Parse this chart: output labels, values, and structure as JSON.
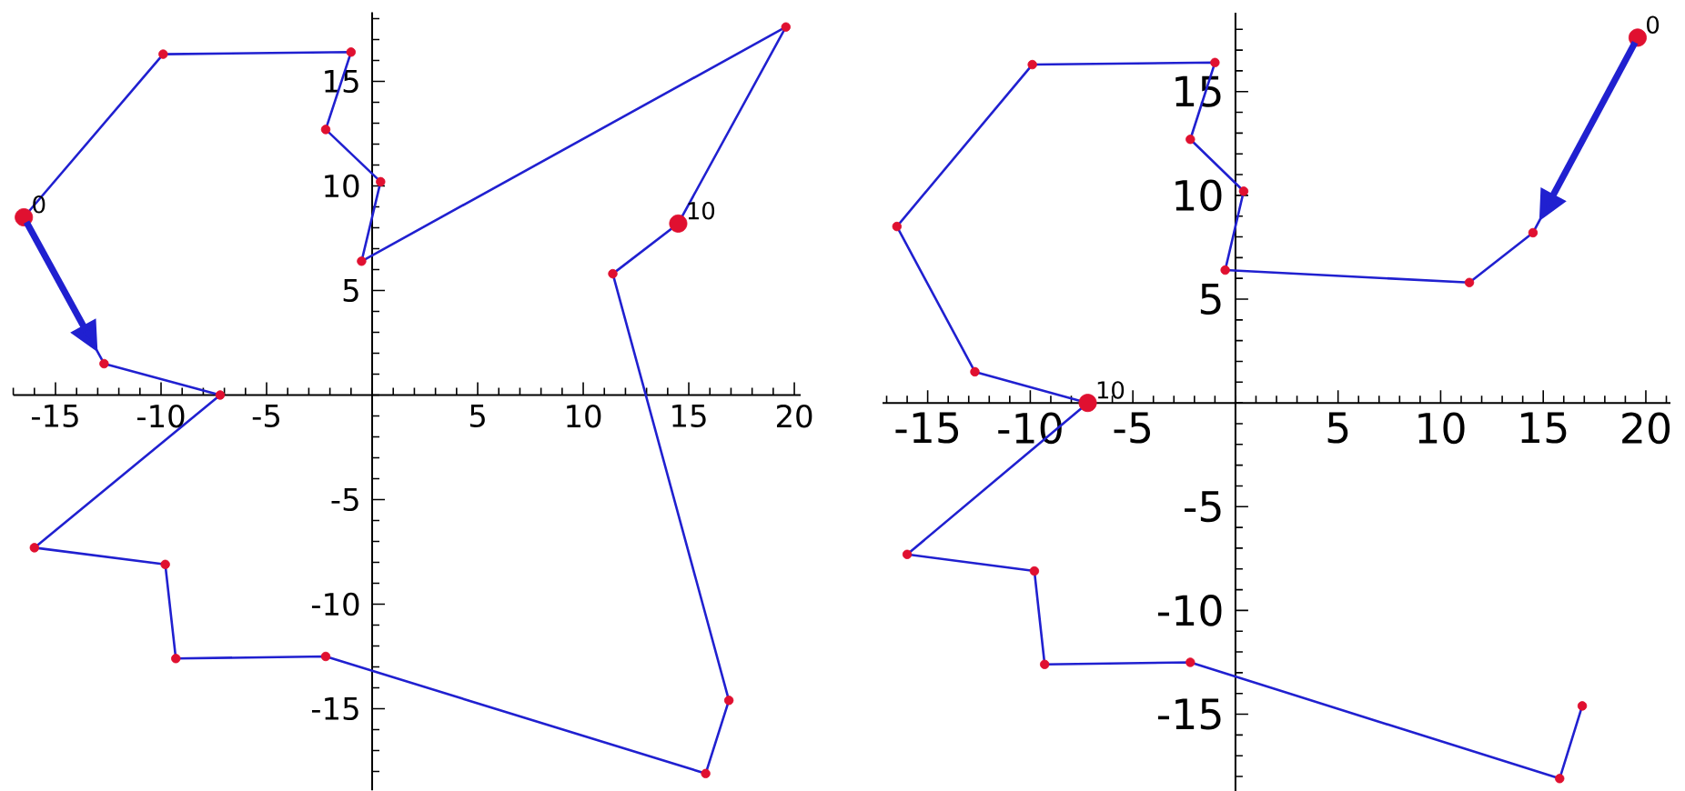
{
  "chart_data": [
    {
      "type": "line",
      "xlim": [
        -17,
        20.3
      ],
      "ylim": [
        -18.9,
        18.3
      ],
      "xticks": [
        -15,
        -10,
        -5,
        5,
        10,
        15,
        20
      ],
      "yticks": [
        -15,
        -10,
        -5,
        5,
        10,
        15
      ],
      "series": [
        {
          "color": "#2020d0",
          "marker": "none",
          "x": [
            -16.5,
            -12.7,
            -7.2,
            -16.0,
            -9.8,
            -9.3,
            -2.2,
            15.8,
            16.9,
            11.4,
            14.5,
            19.6,
            -0.5,
            0.4,
            -2.2,
            -1.0,
            -9.9,
            -16.5
          ],
          "values": [
            8.5,
            1.5,
            0,
            -7.3,
            -8.1,
            -12.6,
            -12.5,
            -18.1,
            -14.6,
            5.8,
            8.2,
            17.6,
            6.4,
            10.2,
            12.7,
            16.4,
            16.3,
            8.5
          ]
        },
        {
          "type": "scatter",
          "color": "#e01030",
          "marker": "circle",
          "x": [
            -12.7,
            -7.2,
            -16.0,
            -9.8,
            -9.3,
            -2.2,
            15.8,
            16.9,
            11.4,
            19.6,
            -0.5,
            0.4,
            -2.2,
            -1.0,
            -9.9
          ],
          "values": [
            1.5,
            0,
            -7.3,
            -8.1,
            -12.6,
            -12.5,
            -18.1,
            -14.6,
            5.8,
            17.6,
            6.4,
            10.2,
            12.7,
            16.4,
            16.3
          ]
        },
        {
          "type": "scatter",
          "color": "#e01030",
          "marker": "circle",
          "x": [
            -16.5,
            14.5
          ],
          "values": [
            8.5,
            8.2
          ]
        }
      ],
      "annotations": [
        {
          "text": "0",
          "x": -16.5,
          "y": 8.5
        },
        {
          "text": "10",
          "x": 14.5,
          "y": 8.2
        }
      ]
    },
    {
      "type": "line",
      "xlim": [
        -17.2,
        21.2
      ],
      "ylim": [
        -18.7,
        18.8
      ],
      "xticks": [
        -15,
        -10,
        -5,
        5,
        10,
        15,
        20
      ],
      "yticks": [
        -15,
        -10,
        -5,
        5,
        10,
        15
      ],
      "series": [
        {
          "color": "#2020d0",
          "marker": "none",
          "x": [
            19.6,
            14.5,
            11.4,
            -0.5,
            0.4,
            -2.2,
            -1.0,
            -9.9,
            -16.5,
            -12.7,
            -7.2,
            -16.0,
            -9.8,
            -9.3,
            -2.2,
            15.8,
            16.9
          ],
          "values": [
            17.6,
            8.2,
            5.8,
            6.4,
            10.2,
            12.7,
            16.4,
            16.3,
            8.5,
            1.5,
            0,
            -7.3,
            -8.1,
            -12.6,
            -12.5,
            -18.1,
            -14.6
          ]
        },
        {
          "type": "scatter",
          "color": "#e01030",
          "marker": "circle",
          "x": [
            14.5,
            11.4,
            -0.5,
            0.4,
            -2.2,
            -1.0,
            -9.9,
            -16.5,
            -12.7,
            -16.0,
            -9.8,
            -9.3,
            -2.2,
            15.8,
            16.9
          ],
          "values": [
            8.2,
            5.8,
            6.4,
            10.2,
            12.7,
            16.4,
            16.3,
            8.5,
            1.5,
            -7.3,
            -8.1,
            -12.6,
            -12.5,
            -18.1,
            -14.6
          ]
        },
        {
          "type": "scatter",
          "color": "#e01030",
          "marker": "circle",
          "x": [
            19.6,
            -7.2
          ],
          "values": [
            17.6,
            0
          ]
        }
      ],
      "annotations": [
        {
          "text": "0",
          "x": 19.6,
          "y": 17.6
        },
        {
          "text": "10",
          "x": -7.2,
          "y": 0
        }
      ]
    }
  ]
}
